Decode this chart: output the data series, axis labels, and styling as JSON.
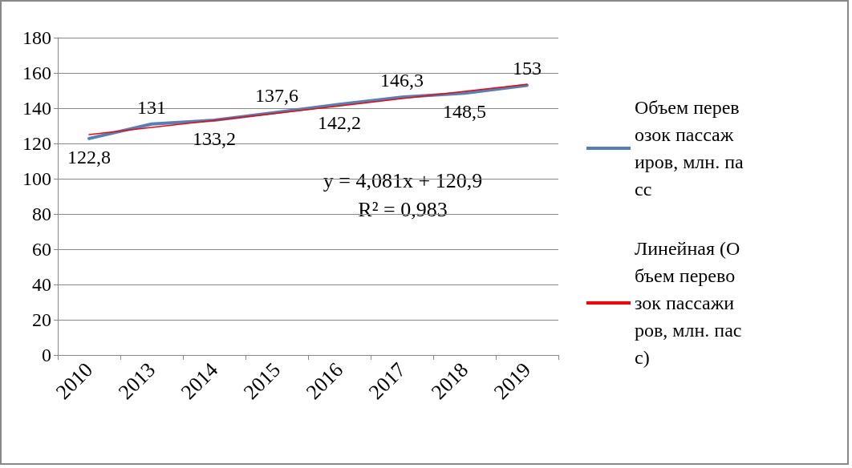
{
  "chart_data": {
    "type": "line",
    "categories": [
      "2010",
      "2013",
      "2014",
      "2015",
      "2016",
      "2017",
      "2018",
      "2019"
    ],
    "series": [
      {
        "name": "Объем перевозок пассажиров, млн. пасс",
        "color": "#4f81bd",
        "values": [
          122.8,
          131,
          133.2,
          137.6,
          142.2,
          146.3,
          148.5,
          153
        ],
        "value_labels": [
          "122,8",
          "131",
          "133,2",
          "137,6",
          "142,2",
          "146,3",
          "148,5",
          "153"
        ]
      },
      {
        "type": "line",
        "name": "Линейная (Объем перевозок пассажиров, млн. пасс)",
        "color": "#ff0000",
        "values": [
          125.0,
          129.1,
          133.1,
          137.2,
          141.3,
          145.4,
          149.5,
          153.5
        ]
      }
    ],
    "ylim": [
      0,
      180
    ],
    "yticks": [
      0,
      20,
      40,
      60,
      80,
      100,
      120,
      140,
      160,
      180
    ],
    "grid": "y",
    "legend": "right",
    "marker": "none",
    "annotations": [
      "y = 4,081x + 120,9",
      "R² = 0,983"
    ]
  }
}
